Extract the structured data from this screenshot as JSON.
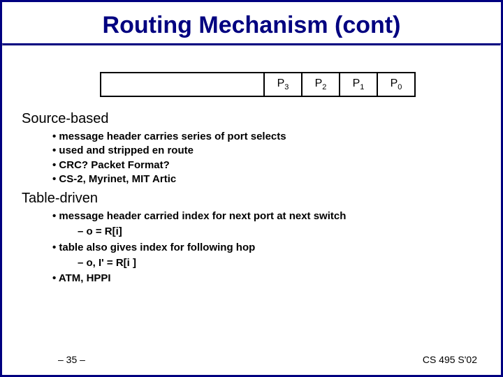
{
  "title": "Routing Mechanism (cont)",
  "packet": {
    "cells": [
      "P",
      "P",
      "P",
      "P"
    ],
    "subs": [
      "3",
      "2",
      "1",
      "0"
    ]
  },
  "section1": {
    "heading": "Source-based",
    "items": [
      "message header carries series of port selects",
      "used and stripped en route",
      "CRC? Packet Format?",
      "CS-2, Myrinet, MIT Artic"
    ]
  },
  "section2": {
    "heading": "Table-driven",
    "items": [
      {
        "text": "message header carried index for next port at next switch",
        "sub": [
          "o = R[i]"
        ]
      },
      {
        "text": "table also gives index for following hop",
        "sub": [
          "o, I' = R[i ]"
        ]
      },
      {
        "text": "ATM, HPPI",
        "sub": []
      }
    ]
  },
  "footer": {
    "left": "– 35 –",
    "right": "CS 495 S'02"
  },
  "colors": {
    "border": "#000080",
    "title": "#000080",
    "text": "#000000",
    "bg": "#ffffff"
  }
}
